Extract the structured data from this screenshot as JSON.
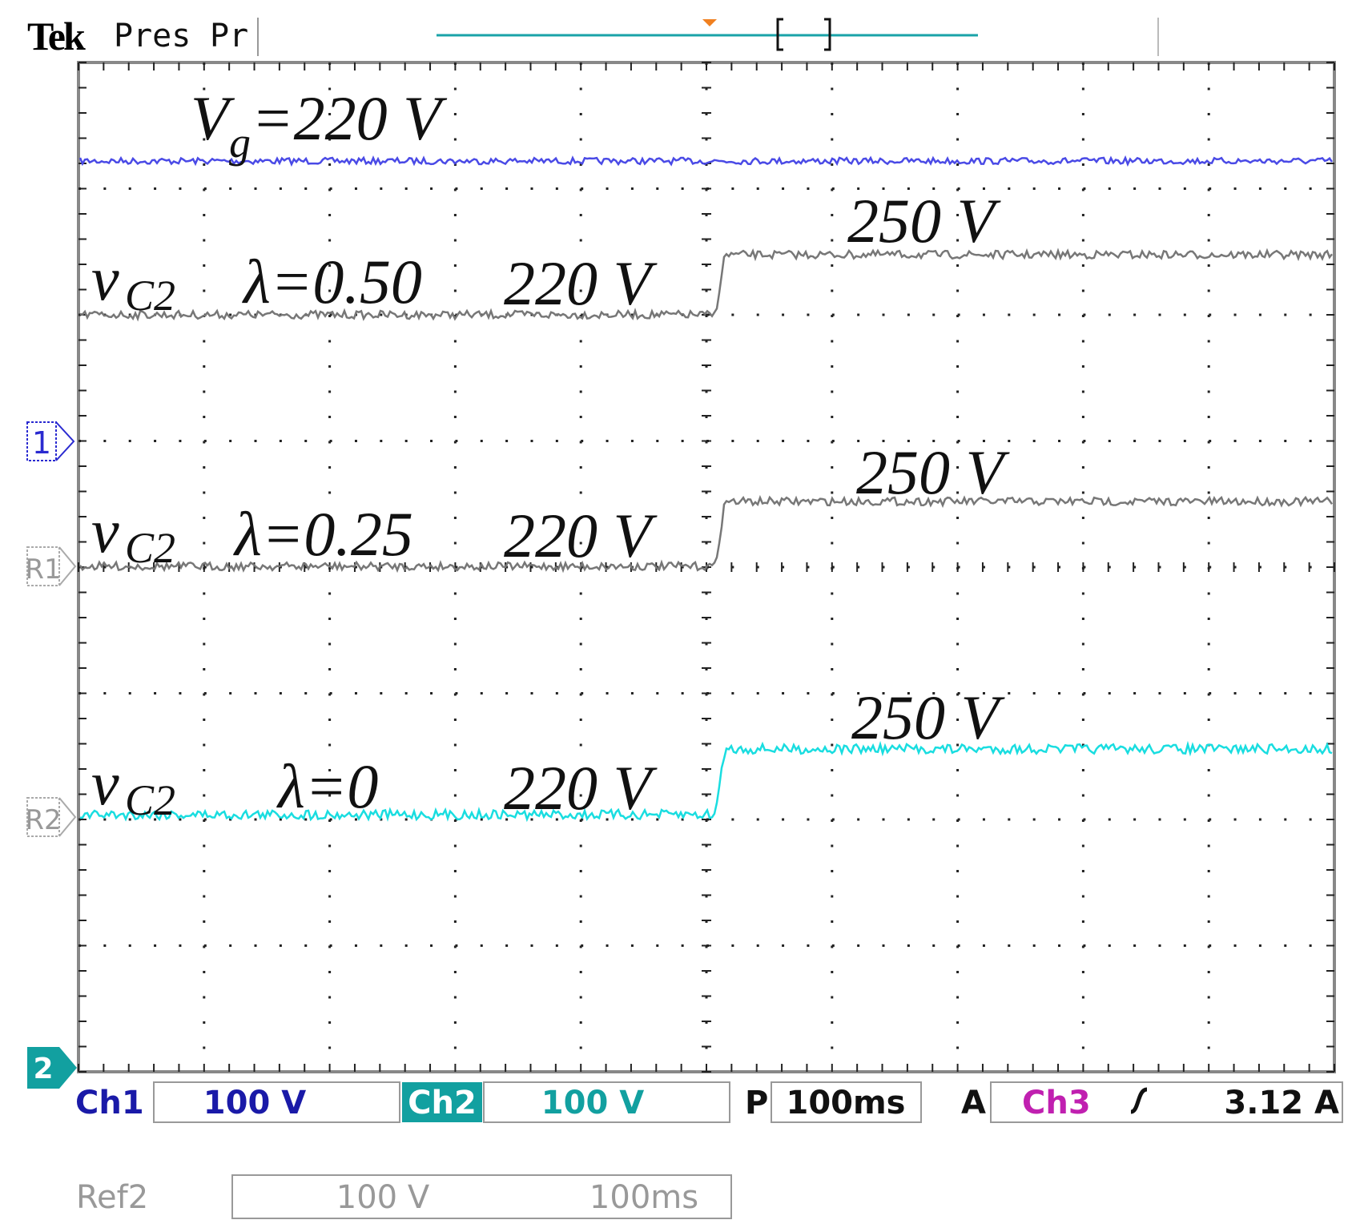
{
  "header": {
    "brand": "Tek",
    "mode": "Pres",
    "status": "Pr"
  },
  "annotations": {
    "source": {
      "symbol": "V",
      "sub": "g",
      "text": "=220 V"
    },
    "rows": [
      {
        "symbol": "v",
        "sub": "C2",
        "lambda": "λ=0.50",
        "before": "220 V",
        "after": "250 V"
      },
      {
        "symbol": "v",
        "sub": "C2",
        "lambda": "λ=0.25",
        "before": "220 V",
        "after": "250 V"
      },
      {
        "symbol": "v",
        "sub": "C2",
        "lambda": "λ=0",
        "before": "220 V",
        "after": "250 V"
      }
    ]
  },
  "markers": {
    "ch1": "1",
    "ref1": "R1",
    "ref2": "R2",
    "ch2": "2"
  },
  "status": {
    "ch1_label": "Ch1",
    "ch1_scale": "100 V",
    "ch2_label": "Ch2",
    "ch2_scale": "100 V",
    "p_label": "P",
    "timebase": "100ms",
    "a_label": "A",
    "trigger_source": "Ch3",
    "trigger_level": "3.12 A"
  },
  "reference": {
    "label": "Ref2",
    "scale": "100 V",
    "timebase": "100ms"
  }
}
